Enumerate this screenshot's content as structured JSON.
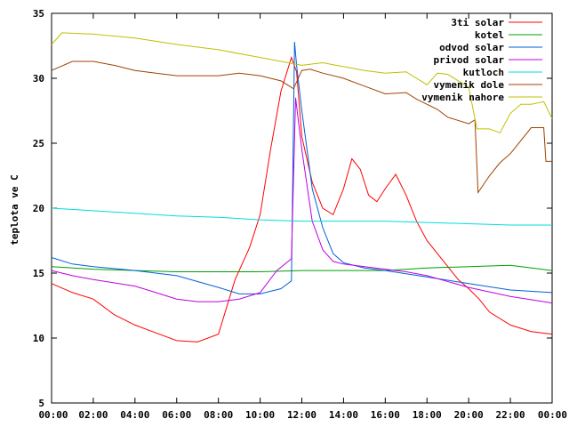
{
  "chart_data": {
    "type": "line",
    "title": "",
    "xlabel": "",
    "ylabel": "teplota ve C",
    "xlim": [
      0,
      24
    ],
    "ylim": [
      5,
      35
    ],
    "xticks": [
      0,
      2,
      4,
      6,
      8,
      10,
      12,
      14,
      16,
      18,
      20,
      22,
      24
    ],
    "xtick_labels": [
      "00:00",
      "02:00",
      "04:00",
      "06:00",
      "08:00",
      "10:00",
      "12:00",
      "14:00",
      "16:00",
      "18:00",
      "20:00",
      "22:00",
      "00:00"
    ],
    "yticks": [
      5,
      10,
      15,
      20,
      25,
      30,
      35
    ],
    "ytick_labels": [
      "5",
      "10",
      "15",
      "20",
      "25",
      "30",
      "35"
    ],
    "grid": false,
    "legend_position": "top-right",
    "series": [
      {
        "name": "3ti solar",
        "color": "#ff0000",
        "points": [
          [
            0,
            14.2
          ],
          [
            1,
            13.5
          ],
          [
            2,
            13.0
          ],
          [
            3,
            11.8
          ],
          [
            4,
            11.0
          ],
          [
            5,
            10.4
          ],
          [
            6,
            9.8
          ],
          [
            7,
            9.7
          ],
          [
            8,
            10.3
          ],
          [
            8.8,
            14.5
          ],
          [
            9.5,
            17.0
          ],
          [
            10,
            19.5
          ],
          [
            10.5,
            24.5
          ],
          [
            11,
            29.0
          ],
          [
            11.5,
            31.6
          ],
          [
            11.75,
            30.5
          ],
          [
            12,
            25.5
          ],
          [
            12.5,
            22.0
          ],
          [
            13,
            20.0
          ],
          [
            13.5,
            19.5
          ],
          [
            14,
            21.5
          ],
          [
            14.4,
            23.8
          ],
          [
            14.8,
            23.0
          ],
          [
            15.2,
            21.0
          ],
          [
            15.6,
            20.5
          ],
          [
            16,
            21.5
          ],
          [
            16.5,
            22.6
          ],
          [
            17,
            21.0
          ],
          [
            17.5,
            19.0
          ],
          [
            18,
            17.5
          ],
          [
            18.5,
            16.5
          ],
          [
            19,
            15.5
          ],
          [
            19.5,
            14.5
          ],
          [
            20,
            13.8
          ],
          [
            20.5,
            13.0
          ],
          [
            21,
            12.0
          ],
          [
            22,
            11.0
          ],
          [
            23,
            10.5
          ],
          [
            24,
            10.3
          ]
        ]
      },
      {
        "name": "kotel",
        "color": "#00a000",
        "points": [
          [
            0,
            15.5
          ],
          [
            2,
            15.3
          ],
          [
            4,
            15.2
          ],
          [
            6,
            15.1
          ],
          [
            8,
            15.1
          ],
          [
            10,
            15.1
          ],
          [
            12,
            15.2
          ],
          [
            14,
            15.2
          ],
          [
            16,
            15.2
          ],
          [
            18,
            15.4
          ],
          [
            20,
            15.5
          ],
          [
            22,
            15.6
          ],
          [
            24,
            15.2
          ]
        ]
      },
      {
        "name": "odvod solar",
        "color": "#0060dd",
        "points": [
          [
            0,
            16.2
          ],
          [
            1,
            15.7
          ],
          [
            2,
            15.5
          ],
          [
            4,
            15.2
          ],
          [
            6,
            14.8
          ],
          [
            8,
            13.9
          ],
          [
            9,
            13.4
          ],
          [
            10,
            13.4
          ],
          [
            11,
            13.8
          ],
          [
            11.5,
            14.4
          ],
          [
            11.65,
            32.8
          ],
          [
            11.75,
            31.0
          ],
          [
            12,
            27.5
          ],
          [
            12.5,
            21.5
          ],
          [
            13,
            18.5
          ],
          [
            13.5,
            16.5
          ],
          [
            14,
            15.8
          ],
          [
            15,
            15.4
          ],
          [
            16,
            15.2
          ],
          [
            18,
            14.7
          ],
          [
            20,
            14.2
          ],
          [
            22,
            13.7
          ],
          [
            24,
            13.5
          ]
        ]
      },
      {
        "name": "privod solar",
        "color": "#c000e0",
        "points": [
          [
            0,
            15.2
          ],
          [
            1,
            14.8
          ],
          [
            2,
            14.5
          ],
          [
            4,
            14.0
          ],
          [
            5,
            13.5
          ],
          [
            6,
            13.0
          ],
          [
            7,
            12.8
          ],
          [
            8,
            12.8
          ],
          [
            9,
            13.0
          ],
          [
            10,
            13.5
          ],
          [
            10.8,
            15.2
          ],
          [
            11.5,
            16.1
          ],
          [
            11.7,
            28.5
          ],
          [
            12,
            24.5
          ],
          [
            12.5,
            19.0
          ],
          [
            13,
            16.8
          ],
          [
            13.5,
            15.9
          ],
          [
            14,
            15.7
          ],
          [
            15,
            15.5
          ],
          [
            16,
            15.3
          ],
          [
            17,
            15.1
          ],
          [
            18,
            14.8
          ],
          [
            20,
            13.9
          ],
          [
            22,
            13.2
          ],
          [
            24,
            12.7
          ]
        ]
      },
      {
        "name": "kutloch",
        "color": "#00dddd",
        "points": [
          [
            0,
            20.0
          ],
          [
            2,
            19.8
          ],
          [
            4,
            19.6
          ],
          [
            6,
            19.4
          ],
          [
            8,
            19.3
          ],
          [
            10,
            19.1
          ],
          [
            12,
            19.0
          ],
          [
            14,
            19.0
          ],
          [
            16,
            19.0
          ],
          [
            18,
            18.9
          ],
          [
            20,
            18.8
          ],
          [
            22,
            18.7
          ],
          [
            24,
            18.7
          ]
        ]
      },
      {
        "name": "vymenik dole",
        "color": "#a04000",
        "points": [
          [
            0,
            30.6
          ],
          [
            1,
            31.3
          ],
          [
            2,
            31.3
          ],
          [
            3,
            31.0
          ],
          [
            4,
            30.6
          ],
          [
            5,
            30.4
          ],
          [
            6,
            30.2
          ],
          [
            7,
            30.2
          ],
          [
            8,
            30.2
          ],
          [
            9,
            30.4
          ],
          [
            10,
            30.2
          ],
          [
            11,
            29.8
          ],
          [
            11.3,
            29.5
          ],
          [
            11.6,
            29.2
          ],
          [
            12,
            30.6
          ],
          [
            12.4,
            30.7
          ],
          [
            13,
            30.4
          ],
          [
            14,
            30.0
          ],
          [
            15,
            29.4
          ],
          [
            16,
            28.8
          ],
          [
            17,
            28.9
          ],
          [
            17.5,
            28.4
          ],
          [
            18.5,
            27.6
          ],
          [
            19,
            27.0
          ],
          [
            20,
            26.5
          ],
          [
            20.3,
            26.8
          ],
          [
            20.45,
            21.2
          ],
          [
            21,
            22.5
          ],
          [
            21.5,
            23.5
          ],
          [
            22,
            24.2
          ],
          [
            23,
            26.2
          ],
          [
            23.6,
            26.2
          ],
          [
            23.7,
            23.6
          ],
          [
            24,
            23.6
          ]
        ]
      },
      {
        "name": "vymenik nahore",
        "color": "#c0c000",
        "points": [
          [
            0,
            32.6
          ],
          [
            0.5,
            33.5
          ],
          [
            2,
            33.4
          ],
          [
            4,
            33.1
          ],
          [
            6,
            32.6
          ],
          [
            8,
            32.2
          ],
          [
            10,
            31.6
          ],
          [
            11,
            31.3
          ],
          [
            12,
            31.0
          ],
          [
            13,
            31.2
          ],
          [
            14,
            30.9
          ],
          [
            15,
            30.6
          ],
          [
            16,
            30.4
          ],
          [
            17,
            30.5
          ],
          [
            18,
            29.5
          ],
          [
            18.5,
            30.4
          ],
          [
            19,
            30.3
          ],
          [
            20,
            29.3
          ],
          [
            20.4,
            26.1
          ],
          [
            21,
            26.1
          ],
          [
            21.5,
            25.8
          ],
          [
            22,
            27.3
          ],
          [
            22.5,
            28.0
          ],
          [
            23,
            28.0
          ],
          [
            23.6,
            28.2
          ],
          [
            24,
            26.9
          ]
        ]
      }
    ]
  }
}
